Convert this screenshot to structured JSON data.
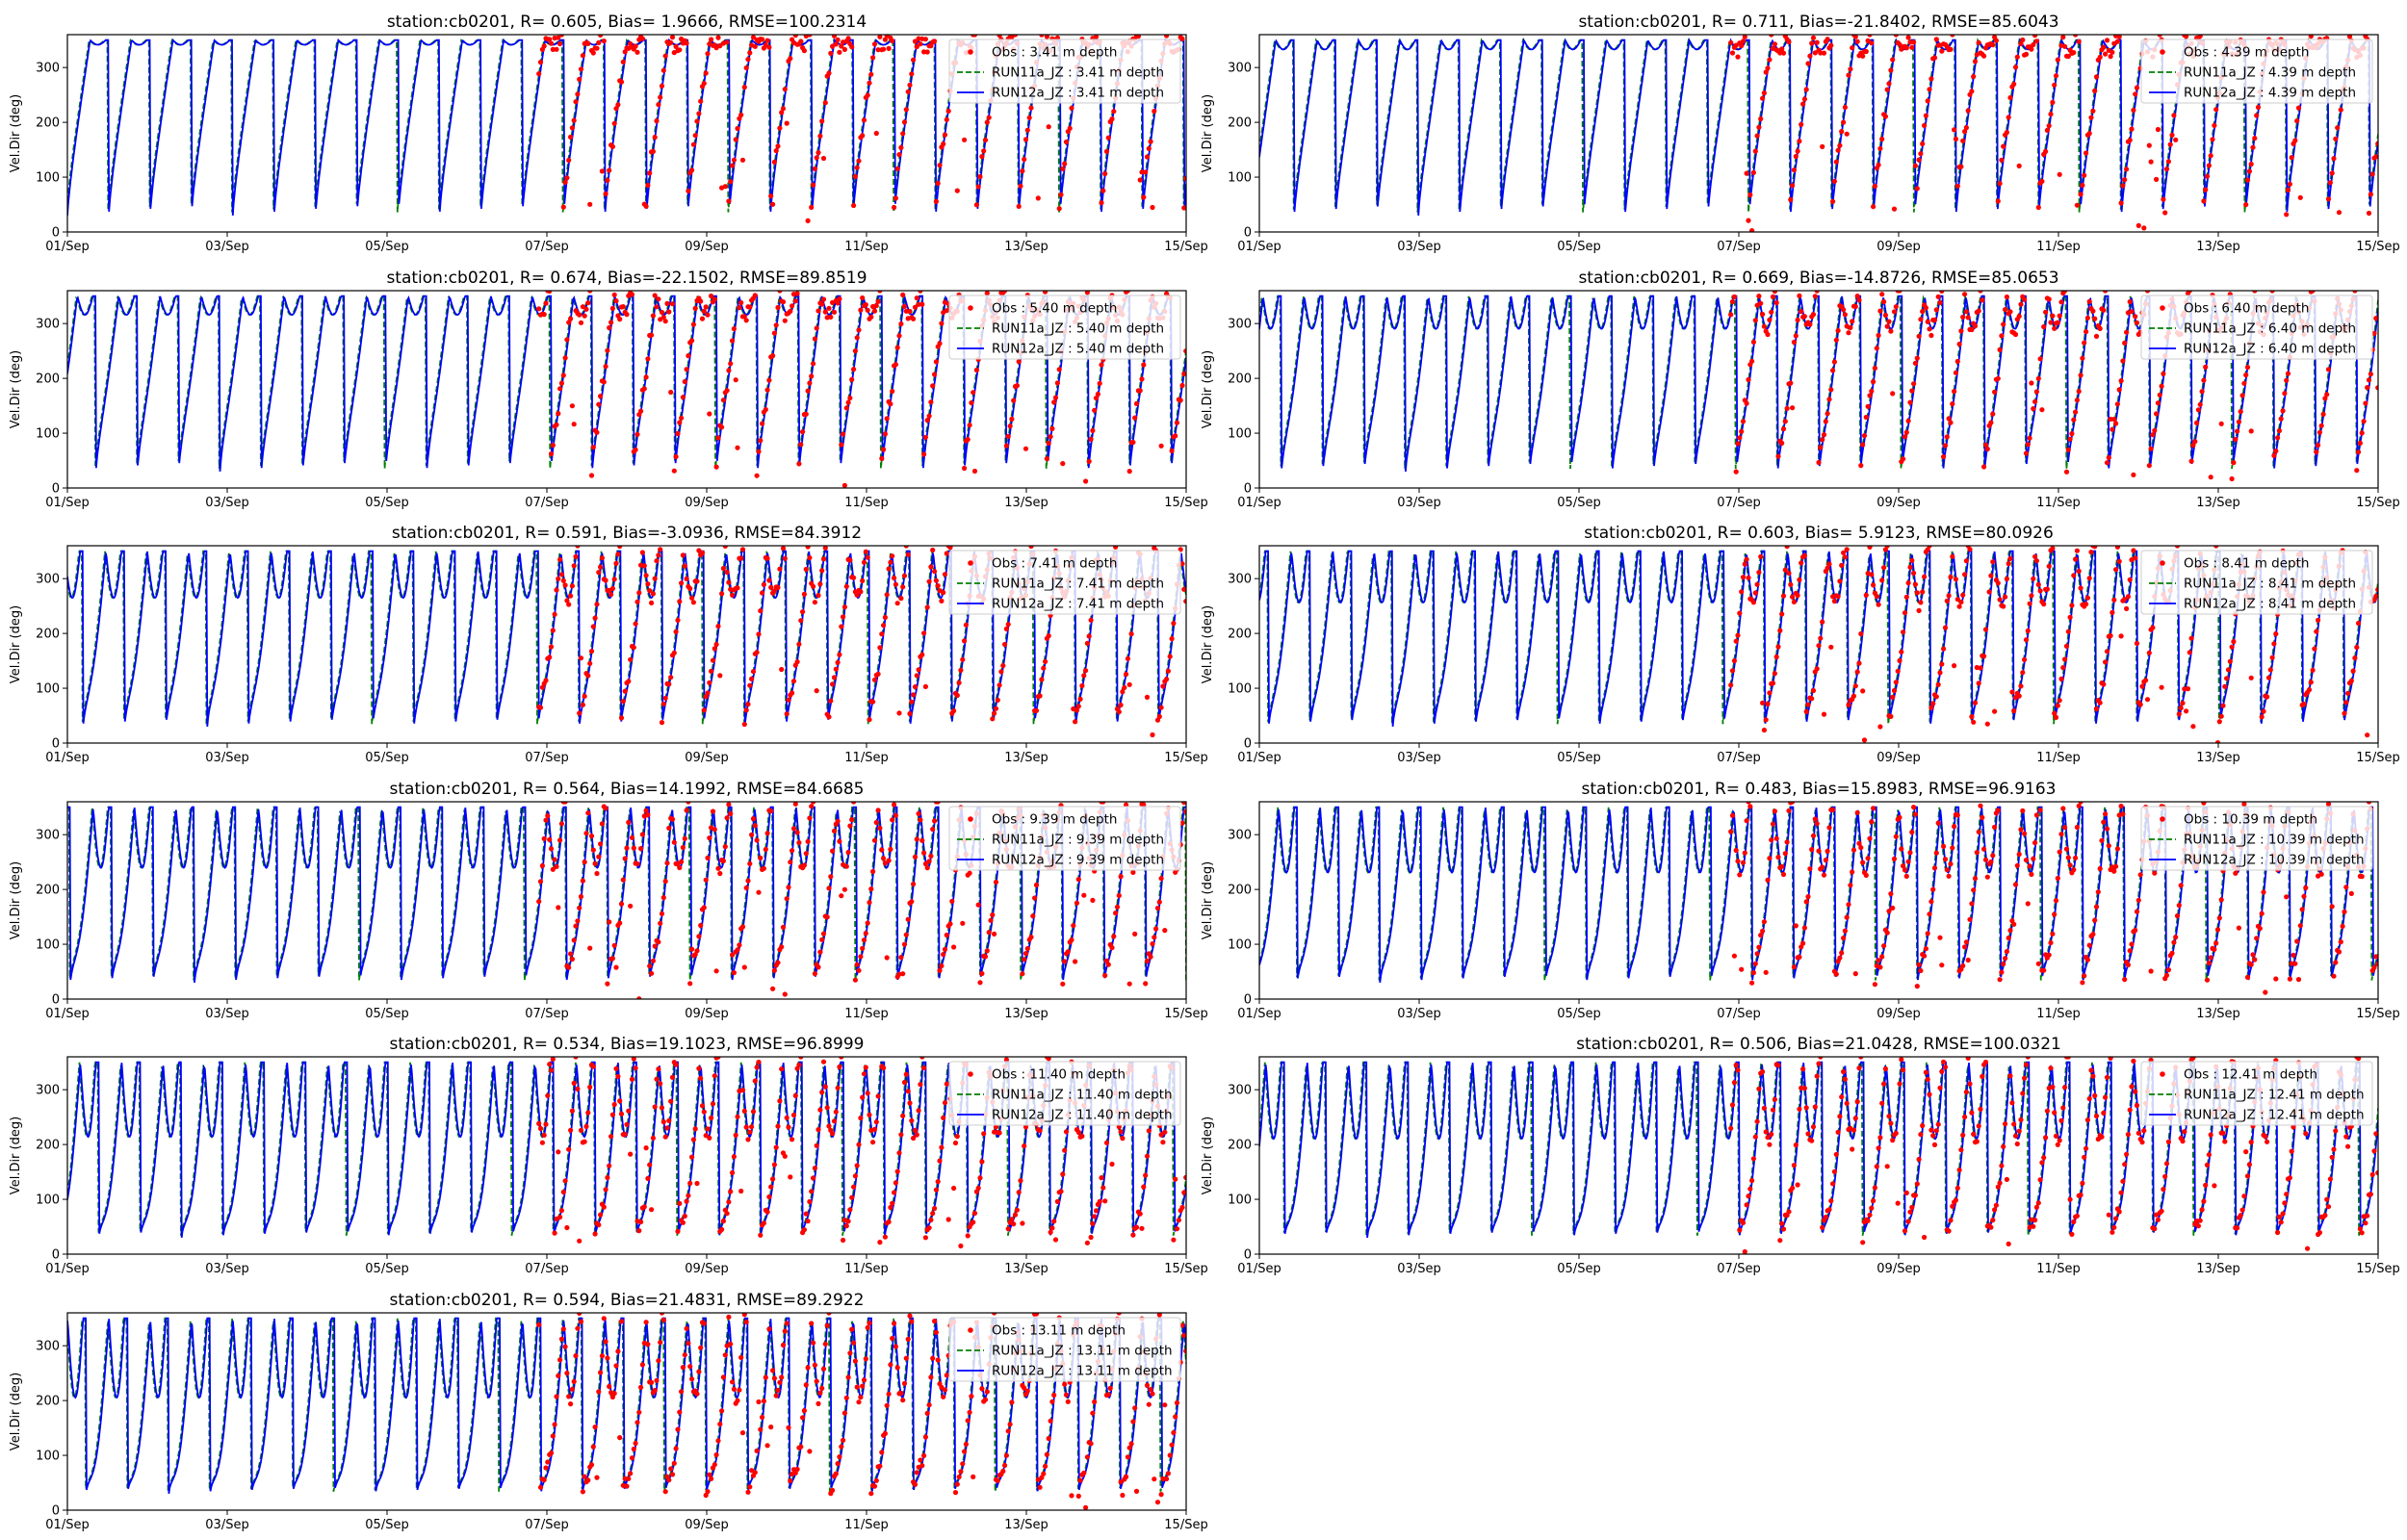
{
  "figure": {
    "xticks": [
      "01/Sep",
      "03/Sep",
      "05/Sep",
      "07/Sep",
      "09/Sep",
      "11/Sep",
      "13/Sep",
      "15/Sep"
    ],
    "yticks": [
      "0",
      "100",
      "200",
      "300"
    ],
    "colors": {
      "obs": "#ff0000",
      "run11": "#008000",
      "run12": "#0000ff"
    }
  },
  "chart_data": [
    {
      "type": "line",
      "title": "station:cb0201, R= 0.605, Bias= 1.9666, RMSE=100.2314",
      "ylabel": "Vel.Dir (deg)",
      "xlim": [
        0,
        14
      ],
      "ylim": [
        0,
        360
      ],
      "depth": 3.41,
      "obs_start_day": 5.9,
      "shape": 0.05,
      "legend": [
        "Obs : 3.41 m depth",
        "RUN11a_JZ : 3.41 m depth",
        "RUN12a_JZ : 3.41 m depth"
      ]
    },
    {
      "type": "line",
      "title": "station:cb0201, R= 0.711, Bias=-21.8402, RMSE=85.6043",
      "ylabel": "Vel.Dir (deg)",
      "xlim": [
        0,
        14
      ],
      "ylim": [
        0,
        360
      ],
      "depth": 4.39,
      "obs_start_day": 5.9,
      "shape": 0.1,
      "legend": [
        "Obs : 4.39 m depth",
        "RUN11a_JZ : 4.39 m depth",
        "RUN12a_JZ : 4.39 m depth"
      ]
    },
    {
      "type": "line",
      "title": "station:cb0201, R= 0.674, Bias=-22.1502, RMSE=89.8519",
      "ylabel": "Vel.Dir (deg)",
      "xlim": [
        0,
        14
      ],
      "ylim": [
        0,
        360
      ],
      "depth": 5.4,
      "obs_start_day": 5.9,
      "shape": 0.2,
      "legend": [
        "Obs : 5.40 m depth",
        "RUN11a_JZ : 5.40 m depth",
        "RUN12a_JZ : 5.40 m depth"
      ]
    },
    {
      "type": "line",
      "title": "station:cb0201, R= 0.669, Bias=-14.8726, RMSE=85.0653",
      "ylabel": "Vel.Dir (deg)",
      "xlim": [
        0,
        14
      ],
      "ylim": [
        0,
        360
      ],
      "depth": 6.4,
      "obs_start_day": 5.9,
      "shape": 0.35,
      "legend": [
        "Obs : 6.40 m depth",
        "RUN11a_JZ : 6.40 m depth",
        "RUN12a_JZ : 6.40 m depth"
      ]
    },
    {
      "type": "line",
      "title": "station:cb0201, R= 0.591, Bias=-3.0936, RMSE=84.3912",
      "ylabel": "Vel.Dir (deg)",
      "xlim": [
        0,
        14
      ],
      "ylim": [
        0,
        360
      ],
      "depth": 7.41,
      "obs_start_day": 5.9,
      "shape": 0.5,
      "legend": [
        "Obs : 7.41 m depth",
        "RUN11a_JZ : 7.41 m depth",
        "RUN12a_JZ : 7.41 m depth"
      ]
    },
    {
      "type": "line",
      "title": "station:cb0201, R= 0.603, Bias= 5.9123, RMSE=80.0926",
      "ylabel": "Vel.Dir (deg)",
      "xlim": [
        0,
        14
      ],
      "ylim": [
        0,
        360
      ],
      "depth": 8.41,
      "obs_start_day": 5.9,
      "shape": 0.55,
      "legend": [
        "Obs : 8.41 m depth",
        "RUN11a_JZ : 8.41 m depth",
        "RUN12a_JZ : 8.41 m depth"
      ]
    },
    {
      "type": "line",
      "title": "station:cb0201, R= 0.564, Bias=14.1992, RMSE=84.6685",
      "ylabel": "Vel.Dir (deg)",
      "xlim": [
        0,
        14
      ],
      "ylim": [
        0,
        360
      ],
      "depth": 9.39,
      "obs_start_day": 5.9,
      "shape": 0.65,
      "legend": [
        "Obs : 9.39 m depth",
        "RUN11a_JZ : 9.39 m depth",
        "RUN12a_JZ : 9.39 m depth"
      ]
    },
    {
      "type": "line",
      "title": "station:cb0201, R= 0.483, Bias=15.8983, RMSE=96.9163",
      "ylabel": "Vel.Dir (deg)",
      "xlim": [
        0,
        14
      ],
      "ylim": [
        0,
        360
      ],
      "depth": 10.39,
      "obs_start_day": 5.9,
      "shape": 0.7,
      "legend": [
        "Obs : 10.39 m depth",
        "RUN11a_JZ : 10.39 m depth",
        "RUN12a_JZ : 10.39 m depth"
      ]
    },
    {
      "type": "line",
      "title": "station:cb0201, R= 0.534, Bias=19.1023, RMSE=96.8999",
      "ylabel": "Vel.Dir (deg)",
      "xlim": [
        0,
        14
      ],
      "ylim": [
        0,
        360
      ],
      "depth": 11.4,
      "obs_start_day": 5.9,
      "shape": 0.8,
      "legend": [
        "Obs : 11.40 m depth",
        "RUN11a_JZ : 11.40 m depth",
        "RUN12a_JZ : 11.40 m depth"
      ]
    },
    {
      "type": "line",
      "title": "station:cb0201, R= 0.506, Bias=21.0428, RMSE=100.0321",
      "ylabel": "Vel.Dir (deg)",
      "xlim": [
        0,
        14
      ],
      "ylim": [
        0,
        360
      ],
      "depth": 12.41,
      "obs_start_day": 5.9,
      "shape": 0.82,
      "legend": [
        "Obs : 12.41 m depth",
        "RUN11a_JZ : 12.41 m depth",
        "RUN12a_JZ : 12.41 m depth"
      ]
    },
    {
      "type": "line",
      "title": "station:cb0201, R= 0.594, Bias=21.4831, RMSE=89.2922",
      "ylabel": "Vel.Dir (deg)",
      "xlim": [
        0,
        14
      ],
      "ylim": [
        0,
        360
      ],
      "depth": 13.11,
      "obs_start_day": 5.9,
      "shape": 0.85,
      "legend": [
        "Obs : 13.11 m depth",
        "RUN11a_JZ : 13.11 m depth",
        "RUN12a_JZ : 13.11 m depth"
      ]
    }
  ]
}
